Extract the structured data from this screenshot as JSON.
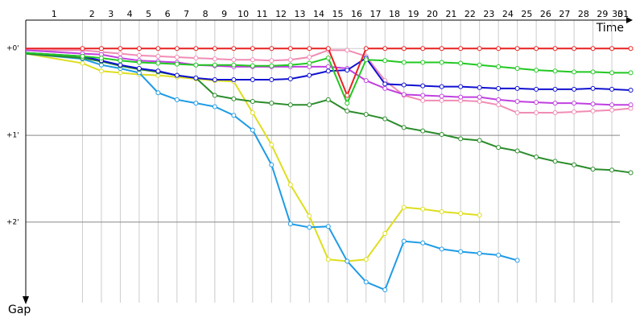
{
  "chart_data": {
    "type": "line",
    "x_label": "Time",
    "y_label": "Gap",
    "y_inverted": true,
    "x": [
      0,
      3,
      4,
      5,
      6,
      7,
      8,
      9,
      10,
      11,
      12,
      13,
      14,
      15,
      16,
      17,
      18,
      19,
      20,
      21,
      22,
      23,
      24,
      25,
      26,
      27,
      28,
      29,
      30,
      31,
      32
    ],
    "xlim": [
      0,
      32.7
    ],
    "xticks": [
      {
        "value": 1.5,
        "label": "1"
      },
      {
        "value": 3.5,
        "label": "2"
      },
      {
        "value": 4.5,
        "label": "3"
      },
      {
        "value": 5.5,
        "label": "4"
      },
      {
        "value": 6.5,
        "label": "5"
      },
      {
        "value": 7.5,
        "label": "6"
      },
      {
        "value": 8.5,
        "label": "7"
      },
      {
        "value": 9.5,
        "label": "8"
      },
      {
        "value": 10.5,
        "label": "9"
      },
      {
        "value": 11.5,
        "label": "10"
      },
      {
        "value": 12.5,
        "label": "11"
      },
      {
        "value": 13.5,
        "label": "12"
      },
      {
        "value": 14.5,
        "label": "13"
      },
      {
        "value": 15.5,
        "label": "14"
      },
      {
        "value": 16.5,
        "label": "15"
      },
      {
        "value": 17.5,
        "label": "16"
      },
      {
        "value": 18.5,
        "label": "17"
      },
      {
        "value": 19.5,
        "label": "18"
      },
      {
        "value": 20.5,
        "label": "19"
      },
      {
        "value": 21.5,
        "label": "20"
      },
      {
        "value": 22.5,
        "label": "21"
      },
      {
        "value": 23.5,
        "label": "22"
      },
      {
        "value": 24.5,
        "label": "23"
      },
      {
        "value": 25.5,
        "label": "24"
      },
      {
        "value": 26.5,
        "label": "25"
      },
      {
        "value": 27.5,
        "label": "26"
      },
      {
        "value": 28.5,
        "label": "27"
      },
      {
        "value": 29.5,
        "label": "28"
      },
      {
        "value": 30.5,
        "label": "29"
      },
      {
        "value": 31.3,
        "label": "30"
      },
      {
        "value": 31.6,
        "label": "31"
      }
    ],
    "x_grid_lines": [
      3,
      4,
      5,
      6,
      7,
      8,
      9,
      10,
      11,
      12,
      13,
      14,
      15,
      16,
      17,
      18,
      19,
      20,
      21,
      22,
      23,
      24,
      25,
      26,
      27,
      28,
      29,
      30,
      31
    ],
    "ylim": [
      -0.28,
      2.9
    ],
    "yticks": [
      {
        "value": 0,
        "label": "+0'"
      },
      {
        "value": 1,
        "label": "+1'"
      },
      {
        "value": 2,
        "label": "+2'"
      }
    ],
    "grid": true,
    "series": [
      {
        "name": "Pink",
        "color": "#f08cb4",
        "values": [
          0.02,
          0.02,
          0.04,
          0.06,
          0.08,
          0.09,
          0.1,
          0.11,
          0.12,
          0.13,
          0.13,
          0.14,
          0.13,
          0.1,
          0.02,
          0.02,
          0.09,
          0.37,
          0.54,
          0.6,
          0.6,
          0.6,
          0.61,
          0.65,
          0.74,
          0.74,
          0.74,
          0.73,
          0.72,
          0.71,
          0.69
        ]
      },
      {
        "name": "Yellow",
        "color": "#dede1e",
        "values": [
          0.06,
          0.17,
          0.26,
          0.28,
          0.3,
          0.31,
          0.33,
          0.35,
          0.37,
          0.38,
          0.74,
          1.11,
          1.57,
          1.93,
          2.43,
          2.45,
          2.43,
          2.13,
          1.83,
          1.85,
          1.88,
          1.9,
          1.92,
          null,
          null,
          null,
          null,
          null,
          null,
          null,
          null
        ]
      },
      {
        "name": "Light blue",
        "color": "#1e9be6",
        "values": [
          0.06,
          0.12,
          0.19,
          0.23,
          0.28,
          0.51,
          0.59,
          0.63,
          0.67,
          0.77,
          0.94,
          1.34,
          2.02,
          2.06,
          2.05,
          2.45,
          2.69,
          2.78,
          2.22,
          2.24,
          2.31,
          2.34,
          2.36,
          2.38,
          2.44,
          null,
          null,
          null,
          null,
          null,
          null
        ]
      },
      {
        "name": "Dark green",
        "color": "#2a8c2a",
        "values": [
          0.06,
          0.11,
          0.15,
          0.2,
          0.24,
          0.27,
          0.31,
          0.34,
          0.54,
          0.58,
          0.61,
          0.63,
          0.65,
          0.65,
          0.59,
          0.72,
          0.76,
          0.81,
          0.91,
          0.95,
          0.99,
          1.04,
          1.06,
          1.14,
          1.18,
          1.25,
          1.3,
          1.34,
          1.39,
          1.4,
          1.43
        ]
      },
      {
        "name": "Purple",
        "color": "#c040e0",
        "values": [
          0.02,
          0.06,
          0.07,
          0.11,
          0.14,
          0.15,
          0.16,
          0.19,
          0.2,
          0.21,
          0.21,
          0.21,
          0.21,
          0.21,
          0.21,
          0.23,
          0.37,
          0.46,
          0.53,
          0.54,
          0.55,
          0.56,
          0.56,
          0.59,
          0.61,
          0.62,
          0.63,
          0.63,
          0.64,
          0.65,
          0.65
        ]
      },
      {
        "name": "Blue",
        "color": "#1010d0",
        "values": [
          0.05,
          0.09,
          0.14,
          0.19,
          0.23,
          0.26,
          0.31,
          0.34,
          0.36,
          0.36,
          0.36,
          0.36,
          0.35,
          0.31,
          0.26,
          0.25,
          0.11,
          0.41,
          0.42,
          0.43,
          0.44,
          0.44,
          0.45,
          0.46,
          0.46,
          0.47,
          0.47,
          0.47,
          0.46,
          0.47,
          0.48
        ]
      },
      {
        "name": "Green",
        "color": "#22c822",
        "values": [
          0.05,
          0.09,
          0.11,
          0.14,
          0.16,
          0.17,
          0.18,
          0.19,
          0.19,
          0.19,
          0.2,
          0.2,
          0.19,
          0.17,
          0.11,
          0.63,
          0.13,
          0.14,
          0.16,
          0.16,
          0.16,
          0.17,
          0.19,
          0.21,
          0.23,
          0.25,
          0.26,
          0.27,
          0.27,
          0.28,
          0.28
        ]
      },
      {
        "name": "Red",
        "color": "#e82020",
        "values": [
          0,
          0,
          0,
          0,
          0,
          0,
          0,
          0,
          0,
          0,
          0,
          0,
          0,
          0,
          0,
          0.54,
          0,
          0,
          0,
          0,
          0,
          0,
          0,
          0,
          0,
          0,
          0,
          0,
          0,
          0,
          0
        ]
      }
    ]
  }
}
